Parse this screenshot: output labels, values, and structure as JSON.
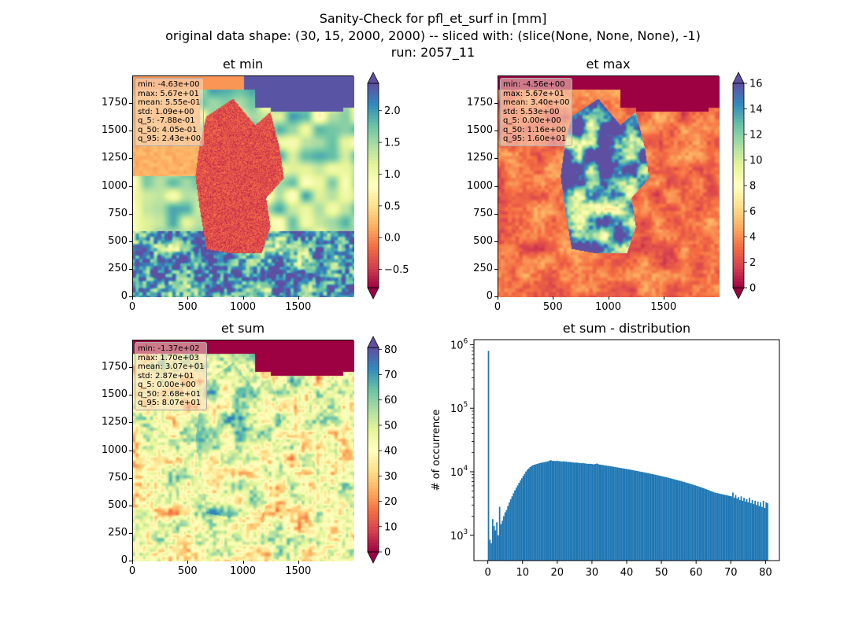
{
  "figure": {
    "title_line1": "Sanity-Check for pfl_et_surf in [mm]",
    "title_line2": "original data shape: (30, 15, 2000, 2000) -- sliced with: (slice(None, None, None), -1)",
    "title_line3": "run: 2057_11"
  },
  "panels": [
    {
      "title": "et min",
      "colormap": "Spectral",
      "stats": [
        "min: -4.63e+00",
        "max: 5.67e+01",
        "mean: 5.55e-01",
        "std: 1.09e+00",
        "q_5: -7.88e-01",
        "q_50: 4.05e-01",
        "q_95: 2.43e+00"
      ],
      "xticks": [
        "0",
        "500",
        "1000",
        "1500"
      ],
      "yticks": [
        "0",
        "250",
        "500",
        "750",
        "1000",
        "1250",
        "1500",
        "1750"
      ],
      "cbar_ticks": [
        "2.0",
        "1.5",
        "1.0",
        "0.5",
        "0.0",
        "−0.5"
      ],
      "cbar_range": [
        -0.79,
        2.43
      ]
    },
    {
      "title": "et max",
      "colormap": "Spectral",
      "stats": [
        "min: -4.56e+00",
        "max: 5.67e+01",
        "mean: 3.40e+00",
        "std: 5.53e+00",
        "q_5: 0.00e+00",
        "q_50: 1.16e+00",
        "q_95: 1.60e+01"
      ],
      "xticks": [
        "0",
        "500",
        "1000",
        "1500"
      ],
      "yticks": [
        "0",
        "250",
        "500",
        "750",
        "1000",
        "1250",
        "1500",
        "1750"
      ],
      "cbar_ticks": [
        "16",
        "14",
        "12",
        "10",
        "8",
        "6",
        "4",
        "2",
        "0"
      ],
      "cbar_range": [
        0,
        16
      ]
    },
    {
      "title": "et sum",
      "colormap": "Spectral",
      "stats": [
        "min: -1.37e+02",
        "max: 1.70e+03",
        "mean: 3.07e+01",
        "std: 2.87e+01",
        "q_5: 0.00e+00",
        "q_50: 2.68e+01",
        "q_95: 8.07e+01"
      ],
      "xticks": [
        "0",
        "500",
        "1000",
        "1500"
      ],
      "yticks": [
        "0",
        "250",
        "500",
        "750",
        "1000",
        "1250",
        "1500",
        "1750"
      ],
      "cbar_ticks": [
        "80",
        "70",
        "60",
        "50",
        "40",
        "30",
        "20",
        "10",
        "0"
      ],
      "cbar_range": [
        0,
        80.7
      ]
    }
  ],
  "chart_data": [
    {
      "type": "heatmap",
      "title": "et min",
      "xlim": [
        0,
        2000
      ],
      "ylim": [
        0,
        2000
      ],
      "colorbar_range": [
        -0.79,
        2.43
      ],
      "colormap": "Spectral"
    },
    {
      "type": "heatmap",
      "title": "et max",
      "xlim": [
        0,
        2000
      ],
      "ylim": [
        0,
        2000
      ],
      "colorbar_range": [
        0,
        16
      ],
      "colormap": "Spectral"
    },
    {
      "type": "heatmap",
      "title": "et sum",
      "xlim": [
        0,
        2000
      ],
      "ylim": [
        0,
        2000
      ],
      "colorbar_range": [
        0,
        80.7
      ],
      "colormap": "Spectral"
    },
    {
      "type": "bar",
      "title": "et sum - distribution",
      "ylabel": "# of occurrence",
      "xlabel": "",
      "yscale": "log",
      "xlim": [
        -4,
        84
      ],
      "ylim": [
        400,
        1200000
      ],
      "xticks": [
        "0",
        "10",
        "20",
        "30",
        "40",
        "50",
        "60",
        "70",
        "80"
      ],
      "yticks": [
        "10^3",
        "10^4",
        "10^5",
        "10^6"
      ],
      "color": "#1f77b4",
      "bin_width": 0.4,
      "bins": [
        [
          0.0,
          800000
        ],
        [
          0.4,
          850
        ],
        [
          0.8,
          750
        ],
        [
          1.2,
          1800
        ],
        [
          1.6,
          1400
        ],
        [
          2.0,
          1200
        ],
        [
          2.4,
          1600
        ],
        [
          2.8,
          1000
        ],
        [
          3.2,
          2800
        ],
        [
          3.6,
          1500
        ],
        [
          4.0,
          1700
        ],
        [
          4.4,
          2000
        ],
        [
          4.8,
          2300
        ],
        [
          5.2,
          2500
        ],
        [
          5.6,
          2900
        ],
        [
          6.0,
          3300
        ],
        [
          6.4,
          3700
        ],
        [
          6.8,
          4100
        ],
        [
          7.2,
          4600
        ],
        [
          7.6,
          5100
        ],
        [
          8.0,
          5600
        ],
        [
          8.4,
          6100
        ],
        [
          8.8,
          6700
        ],
        [
          9.2,
          7300
        ],
        [
          9.6,
          7900
        ],
        [
          10.0,
          8600
        ],
        [
          10.4,
          9300
        ],
        [
          10.8,
          10100
        ],
        [
          11.2,
          10800
        ],
        [
          11.6,
          11300
        ],
        [
          12.0,
          11900
        ],
        [
          12.4,
          12300
        ],
        [
          12.8,
          12700
        ],
        [
          13.2,
          12900
        ],
        [
          13.6,
          13100
        ],
        [
          14.0,
          13300
        ],
        [
          14.4,
          13500
        ],
        [
          14.8,
          13700
        ],
        [
          15.2,
          13900
        ],
        [
          15.6,
          14000
        ],
        [
          16.0,
          14200
        ],
        [
          16.4,
          14300
        ],
        [
          16.8,
          14400
        ],
        [
          17.2,
          14600
        ],
        [
          17.6,
          15000
        ],
        [
          18.0,
          15200
        ],
        [
          18.4,
          14800
        ],
        [
          18.8,
          14900
        ],
        [
          19.2,
          14700
        ],
        [
          19.6,
          14900
        ],
        [
          20.0,
          14800
        ],
        [
          20.4,
          14700
        ],
        [
          20.8,
          14600
        ],
        [
          21.2,
          14500
        ],
        [
          21.6,
          14600
        ],
        [
          22.0,
          14500
        ],
        [
          22.4,
          14400
        ],
        [
          22.8,
          14300
        ],
        [
          23.2,
          14300
        ],
        [
          23.6,
          14200
        ],
        [
          24.0,
          14100
        ],
        [
          24.4,
          14000
        ],
        [
          24.8,
          13900
        ],
        [
          25.2,
          14000
        ],
        [
          25.6,
          13900
        ],
        [
          26.0,
          13800
        ],
        [
          26.4,
          13700
        ],
        [
          26.8,
          13600
        ],
        [
          27.2,
          13800
        ],
        [
          27.6,
          13600
        ],
        [
          28.0,
          13500
        ],
        [
          28.4,
          13400
        ],
        [
          28.8,
          13300
        ],
        [
          29.2,
          13400
        ],
        [
          29.6,
          13300
        ],
        [
          30.0,
          13200
        ],
        [
          30.4,
          13100
        ],
        [
          30.8,
          13300
        ],
        [
          31.2,
          13500
        ],
        [
          31.6,
          13200
        ],
        [
          32.0,
          13000
        ],
        [
          32.4,
          12900
        ],
        [
          32.8,
          12800
        ],
        [
          33.2,
          12700
        ],
        [
          33.6,
          12600
        ],
        [
          34.0,
          12500
        ],
        [
          34.4,
          12400
        ],
        [
          34.8,
          12300
        ],
        [
          35.2,
          12200
        ],
        [
          35.6,
          12100
        ],
        [
          36.0,
          12000
        ],
        [
          36.4,
          11900
        ],
        [
          36.8,
          11800
        ],
        [
          37.2,
          11700
        ],
        [
          37.6,
          11600
        ],
        [
          38.0,
          11500
        ],
        [
          38.4,
          11400
        ],
        [
          38.8,
          11300
        ],
        [
          39.2,
          11200
        ],
        [
          39.6,
          11100
        ],
        [
          40.0,
          11000
        ],
        [
          40.4,
          10900
        ],
        [
          40.8,
          10800
        ],
        [
          41.2,
          10700
        ],
        [
          41.6,
          10600
        ],
        [
          42.0,
          10500
        ],
        [
          42.4,
          10400
        ],
        [
          42.8,
          10300
        ],
        [
          43.2,
          10200
        ],
        [
          43.6,
          10100
        ],
        [
          44.0,
          10000
        ],
        [
          44.4,
          9900
        ],
        [
          44.8,
          9800
        ],
        [
          45.2,
          9700
        ],
        [
          45.6,
          9600
        ],
        [
          46.0,
          9500
        ],
        [
          46.4,
          9400
        ],
        [
          46.8,
          9300
        ],
        [
          47.2,
          9200
        ],
        [
          47.6,
          9100
        ],
        [
          48.0,
          9000
        ],
        [
          48.4,
          8900
        ],
        [
          48.8,
          8800
        ],
        [
          49.2,
          8700
        ],
        [
          49.6,
          8600
        ],
        [
          50.0,
          8500
        ],
        [
          50.4,
          8400
        ],
        [
          50.8,
          8300
        ],
        [
          51.2,
          8200
        ],
        [
          51.6,
          8100
        ],
        [
          52.0,
          8000
        ],
        [
          52.4,
          7900
        ],
        [
          52.8,
          7800
        ],
        [
          53.2,
          7700
        ],
        [
          53.6,
          7600
        ],
        [
          54.0,
          7500
        ],
        [
          54.4,
          7400
        ],
        [
          54.8,
          7300
        ],
        [
          55.2,
          7200
        ],
        [
          55.6,
          7100
        ],
        [
          56.0,
          7000
        ],
        [
          56.4,
          6900
        ],
        [
          56.8,
          6800
        ],
        [
          57.2,
          6700
        ],
        [
          57.6,
          6600
        ],
        [
          58.0,
          6500
        ],
        [
          58.4,
          6400
        ],
        [
          58.8,
          6300
        ],
        [
          59.2,
          6200
        ],
        [
          59.6,
          6100
        ],
        [
          60.0,
          6000
        ],
        [
          60.4,
          5900
        ],
        [
          60.8,
          5800
        ],
        [
          61.2,
          5700
        ],
        [
          61.6,
          5600
        ],
        [
          62.0,
          5500
        ],
        [
          62.4,
          5400
        ],
        [
          62.8,
          5300
        ],
        [
          63.2,
          5200
        ],
        [
          63.6,
          5100
        ],
        [
          64.0,
          5000
        ],
        [
          64.4,
          4900
        ],
        [
          64.8,
          4800
        ],
        [
          65.2,
          4700
        ],
        [
          65.6,
          4650
        ],
        [
          66.0,
          4600
        ],
        [
          66.4,
          4550
        ],
        [
          66.8,
          4500
        ],
        [
          67.2,
          4450
        ],
        [
          67.6,
          4400
        ],
        [
          68.0,
          4350
        ],
        [
          68.4,
          4300
        ],
        [
          68.8,
          4250
        ],
        [
          69.2,
          4200
        ],
        [
          69.6,
          4150
        ],
        [
          70.0,
          4100
        ],
        [
          70.4,
          4700
        ],
        [
          70.8,
          3900
        ],
        [
          71.2,
          4300
        ],
        [
          71.6,
          3800
        ],
        [
          72.0,
          4000
        ],
        [
          72.4,
          3600
        ],
        [
          72.8,
          4100
        ],
        [
          73.2,
          3500
        ],
        [
          73.6,
          3900
        ],
        [
          74.0,
          3400
        ],
        [
          74.4,
          3700
        ],
        [
          74.8,
          3300
        ],
        [
          75.2,
          3900
        ],
        [
          75.6,
          3200
        ],
        [
          76.0,
          3600
        ],
        [
          76.4,
          3100
        ],
        [
          76.8,
          3500
        ],
        [
          77.2,
          3000
        ],
        [
          77.6,
          3400
        ],
        [
          78.0,
          2900
        ],
        [
          78.4,
          3300
        ],
        [
          78.8,
          2800
        ],
        [
          79.2,
          3500
        ],
        [
          79.6,
          2700
        ],
        [
          80.0,
          3300
        ],
        [
          80.4,
          3200
        ]
      ]
    }
  ]
}
